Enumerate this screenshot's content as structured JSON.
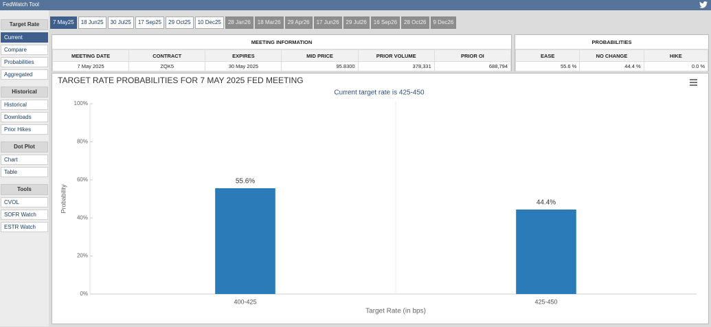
{
  "header": {
    "title": "FedWatch Tool"
  },
  "sidebar": [
    {
      "title": "Target Rate",
      "items": [
        "Current",
        "Compare",
        "Probabilities",
        "Aggregated"
      ],
      "selected": 0
    },
    {
      "title": "Historical",
      "items": [
        "Historical",
        "Downloads",
        "Prior Hikes"
      ]
    },
    {
      "title": "Dot Plot",
      "items": [
        "Chart",
        "Table"
      ]
    },
    {
      "title": "Tools",
      "items": [
        "CVOL",
        "SOFR Watch",
        "ESTR Watch"
      ]
    }
  ],
  "tabs": [
    {
      "label": "7 May25",
      "state": "active"
    },
    {
      "label": "18 Jun25",
      "state": "available"
    },
    {
      "label": "30 Jul25",
      "state": "available"
    },
    {
      "label": "17 Sep25",
      "state": "available"
    },
    {
      "label": "29 Oct25",
      "state": "available"
    },
    {
      "label": "10 Dec25",
      "state": "available"
    },
    {
      "label": "28 Jan26",
      "state": "disabled"
    },
    {
      "label": "18 Mar26",
      "state": "disabled"
    },
    {
      "label": "29 Apr26",
      "state": "disabled"
    },
    {
      "label": "17 Jun26",
      "state": "disabled"
    },
    {
      "label": "29 Jul26",
      "state": "disabled"
    },
    {
      "label": "16 Sep26",
      "state": "disabled"
    },
    {
      "label": "28 Oct26",
      "state": "disabled"
    },
    {
      "label": "9 Dec26",
      "state": "disabled"
    }
  ],
  "meeting_information": {
    "title": "MEETING INFORMATION",
    "columns": [
      "MEETING DATE",
      "CONTRACT",
      "EXPIRES",
      "MID PRICE",
      "PRIOR VOLUME",
      "PRIOR OI"
    ],
    "rows": [
      [
        "7 May 2025",
        "ZQK5",
        "30 May 2025",
        "95.8300",
        "378,331",
        "688,794"
      ]
    ]
  },
  "probabilities": {
    "title": "PROBABILITIES",
    "columns": [
      "EASE",
      "NO CHANGE",
      "HIKE"
    ],
    "rows": [
      [
        "55.6 %",
        "44.4 %",
        "0.0 %"
      ]
    ]
  },
  "chart_data": {
    "type": "bar",
    "title": "TARGET RATE PROBABILITIES FOR 7 MAY 2025 FED MEETING",
    "subtitle": "Current target rate is 425-450",
    "x_label": "Target Rate (in bps)",
    "y_label": "Probability",
    "categories": [
      "400-425",
      "425-450"
    ],
    "values": [
      55.6,
      44.4
    ],
    "value_labels": [
      "55.6%",
      "44.4%"
    ],
    "color": "#2b7bb9",
    "ylim": [
      0,
      100
    ],
    "yticks": [
      {
        "value": 0,
        "label": "0%"
      },
      {
        "value": 20,
        "label": "20%"
      },
      {
        "value": 40,
        "label": "40%"
      },
      {
        "value": 60,
        "label": "60%"
      },
      {
        "value": 80,
        "label": "80%"
      },
      {
        "value": 100,
        "label": "100%"
      }
    ]
  }
}
